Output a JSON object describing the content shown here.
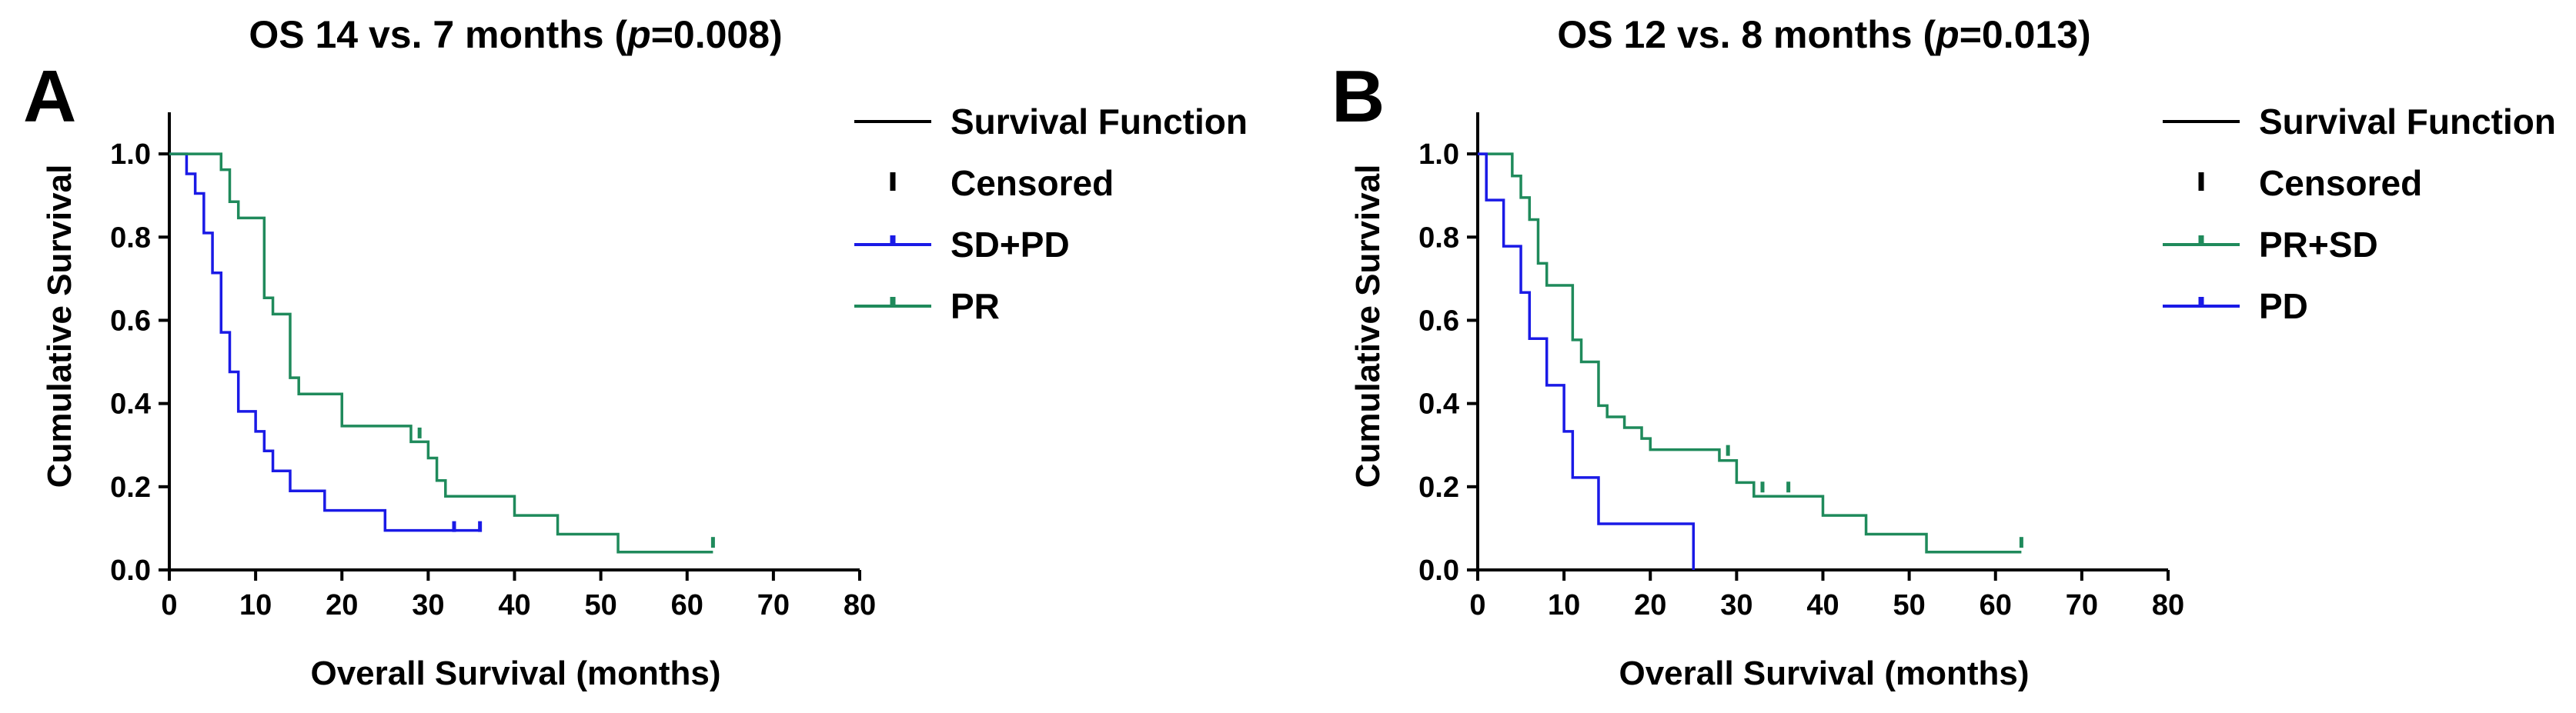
{
  "chart_data": [
    {
      "type": "line",
      "panel_label": "A",
      "title": "OS 14 vs. 7 months (p=0.008)",
      "title_parts": {
        "prefix": "OS 14 vs. 7 months (",
        "p": "p",
        "suffix": "=0.008)"
      },
      "xlabel": "Overall Survival (months)",
      "ylabel": "Cumulative Survival",
      "xlim": [
        0,
        80
      ],
      "ylim": [
        0,
        1.1
      ],
      "xticks": [
        0,
        10,
        20,
        30,
        40,
        50,
        60,
        70,
        80
      ],
      "yticks": [
        0.0,
        0.2,
        0.4,
        0.6,
        0.8,
        1.0
      ],
      "xtick_labels": [
        "0",
        "10",
        "20",
        "30",
        "40",
        "50",
        "60",
        "70",
        "80"
      ],
      "ytick_labels": [
        "0.0",
        "0.2",
        "0.4",
        "0.6",
        "0.8",
        "1.0"
      ],
      "legend": [
        {
          "label": "Survival Function",
          "kind": "line",
          "color": "#000000"
        },
        {
          "label": "Censored",
          "kind": "censor",
          "color": "#000000"
        },
        {
          "label": "SD+PD",
          "kind": "both",
          "color": "#1a1ae6"
        },
        {
          "label": "PR",
          "kind": "both",
          "color": "#1f8a5b"
        }
      ],
      "series": [
        {
          "name": "SD+PD",
          "color": "#1a1ae6",
          "steps": [
            [
              0,
              1.0
            ],
            [
              2,
              0.952
            ],
            [
              3,
              0.905
            ],
            [
              4,
              0.81
            ],
            [
              5,
              0.714
            ],
            [
              6,
              0.571
            ],
            [
              7,
              0.476
            ],
            [
              8,
              0.381
            ],
            [
              10,
              0.333
            ],
            [
              11,
              0.286
            ],
            [
              12,
              0.238
            ],
            [
              14,
              0.19
            ],
            [
              18,
              0.143
            ],
            [
              25,
              0.095
            ],
            [
              36,
              0.095
            ]
          ],
          "censored": [
            [
              33,
              0.095
            ],
            [
              36,
              0.095
            ]
          ]
        },
        {
          "name": "PR",
          "color": "#1f8a5b",
          "steps": [
            [
              0,
              1.0
            ],
            [
              6,
              0.962
            ],
            [
              7,
              0.885
            ],
            [
              8,
              0.846
            ],
            [
              11,
              0.654
            ],
            [
              12,
              0.615
            ],
            [
              14,
              0.462
            ],
            [
              15,
              0.423
            ],
            [
              20,
              0.346
            ],
            [
              28,
              0.308
            ],
            [
              30,
              0.269
            ],
            [
              31,
              0.215
            ],
            [
              32,
              0.177
            ],
            [
              40,
              0.131
            ],
            [
              45,
              0.086
            ],
            [
              52,
              0.043
            ],
            [
              63,
              0.043
            ]
          ],
          "censored": [
            [
              29,
              0.32
            ],
            [
              63,
              0.057
            ]
          ]
        }
      ]
    },
    {
      "type": "line",
      "panel_label": "B",
      "title": "OS 12 vs. 8 months (p=0.013)",
      "title_parts": {
        "prefix": "OS 12 vs. 8 months (",
        "p": "p",
        "suffix": "=0.013)"
      },
      "xlabel": "Overall Survival (months)",
      "ylabel": "Cumulative Survival",
      "xlim": [
        0,
        80
      ],
      "ylim": [
        0,
        1.1
      ],
      "xticks": [
        0,
        10,
        20,
        30,
        40,
        50,
        60,
        70,
        80
      ],
      "yticks": [
        0.0,
        0.2,
        0.4,
        0.6,
        0.8,
        1.0
      ],
      "xtick_labels": [
        "0",
        "10",
        "20",
        "30",
        "40",
        "50",
        "60",
        "70",
        "80"
      ],
      "ytick_labels": [
        "0.0",
        "0.2",
        "0.4",
        "0.6",
        "0.8",
        "1.0"
      ],
      "legend": [
        {
          "label": "Survival Function",
          "kind": "line",
          "color": "#000000"
        },
        {
          "label": "Censored",
          "kind": "censor",
          "color": "#000000"
        },
        {
          "label": "PR+SD",
          "kind": "both",
          "color": "#1f8a5b"
        },
        {
          "label": "PD",
          "kind": "both",
          "color": "#1a1ae6"
        }
      ],
      "series": [
        {
          "name": "PR+SD",
          "color": "#1f8a5b",
          "steps": [
            [
              0,
              1.0
            ],
            [
              4,
              0.947
            ],
            [
              5,
              0.895
            ],
            [
              6,
              0.842
            ],
            [
              7,
              0.737
            ],
            [
              8,
              0.684
            ],
            [
              11,
              0.553
            ],
            [
              12,
              0.5
            ],
            [
              14,
              0.395
            ],
            [
              15,
              0.368
            ],
            [
              17,
              0.342
            ],
            [
              19,
              0.316
            ],
            [
              20,
              0.289
            ],
            [
              28,
              0.263
            ],
            [
              30,
              0.21
            ],
            [
              32,
              0.177
            ],
            [
              40,
              0.131
            ],
            [
              45,
              0.086
            ],
            [
              52,
              0.043
            ],
            [
              63,
              0.043
            ]
          ],
          "censored": [
            [
              29,
              0.278
            ],
            [
              33,
              0.19
            ],
            [
              36,
              0.19
            ],
            [
              63,
              0.057
            ]
          ]
        },
        {
          "name": "PD",
          "color": "#1a1ae6",
          "steps": [
            [
              0,
              1.0
            ],
            [
              1,
              0.889
            ],
            [
              3,
              0.778
            ],
            [
              5,
              0.667
            ],
            [
              6,
              0.556
            ],
            [
              8,
              0.444
            ],
            [
              10,
              0.333
            ],
            [
              11,
              0.222
            ],
            [
              14,
              0.111
            ],
            [
              25,
              0.0
            ]
          ],
          "censored": []
        }
      ]
    }
  ]
}
